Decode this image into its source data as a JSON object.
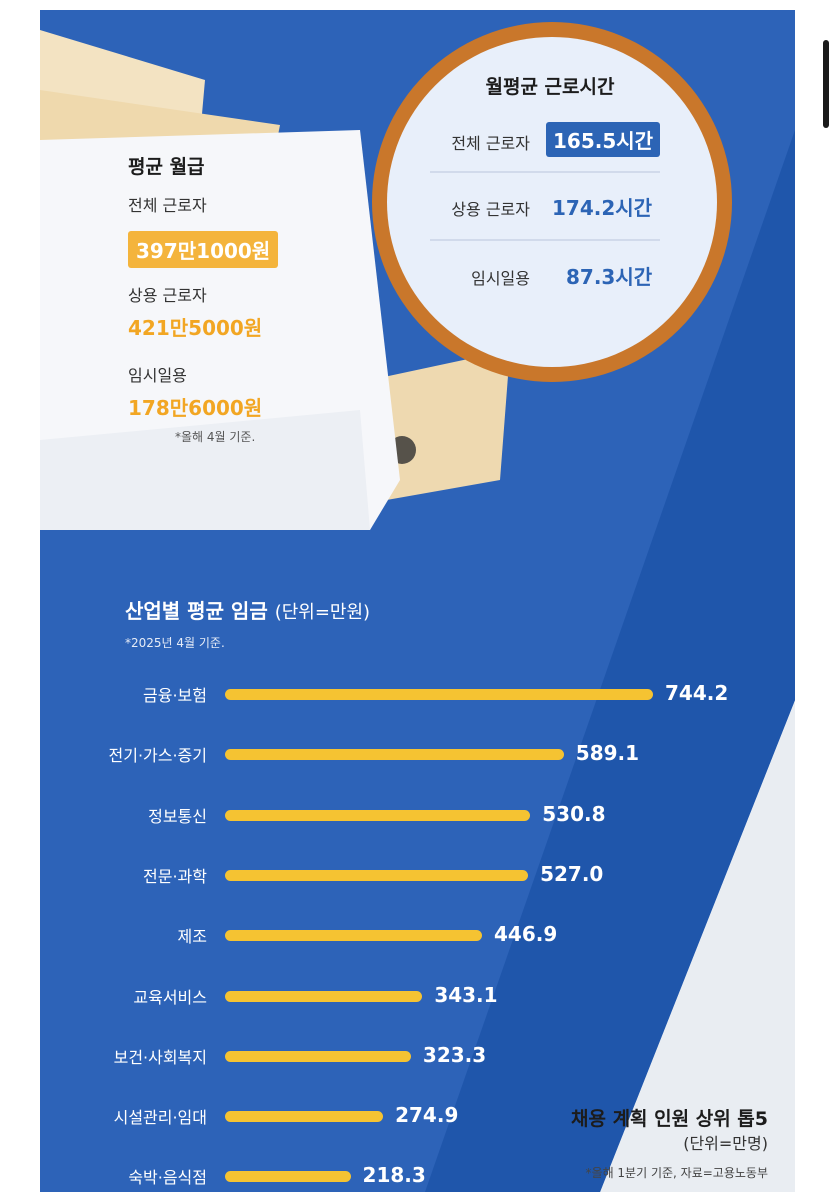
{
  "wage": {
    "title": "평균 월급",
    "rows": [
      {
        "label": "전체 근로자",
        "value": "397만1000원"
      },
      {
        "label": "상용 근로자",
        "value": "421만5000원"
      },
      {
        "label": "임시일용",
        "value": "178만6000원"
      }
    ],
    "note": "*올해 4월 기준."
  },
  "hours": {
    "title": "월평균 근로시간",
    "rows": [
      {
        "label": "전체 근로자",
        "value": "165.5시간"
      },
      {
        "label": "상용 근로자",
        "value": "174.2시간"
      },
      {
        "label": "임시일용",
        "value": "87.3시간"
      }
    ]
  },
  "hiring": {
    "title": "채용 계획 인원 상위 톱5",
    "unit": "(단위=만명)",
    "note": "*올해 1분기 기준, 자료=고용노동부"
  },
  "colors": {
    "accent_orange": "#f4b43c",
    "accent_blue": "#2c64b5",
    "bar_yellow": "#f5c332",
    "background_blue": "#2d63b8"
  },
  "chart_data": {
    "type": "bar",
    "orientation": "horizontal",
    "title": "산업별 평균 임금",
    "unit": "(단위=만원)",
    "note": "*2025년 4월 기준.",
    "categories": [
      "금융·보험",
      "전기·가스·증기",
      "정보통신",
      "전문·과학",
      "제조",
      "교육서비스",
      "보건·사회복지",
      "시설관리·임대",
      "숙박·음식점"
    ],
    "values": [
      744.2,
      589.1,
      530.8,
      527.0,
      446.9,
      343.1,
      323.3,
      274.9,
      218.3
    ],
    "value_labels": [
      "744.2",
      "589.1",
      "530.8",
      "527.0",
      "446.9",
      "343.1",
      "323.3",
      "274.9",
      "218.3"
    ]
  }
}
